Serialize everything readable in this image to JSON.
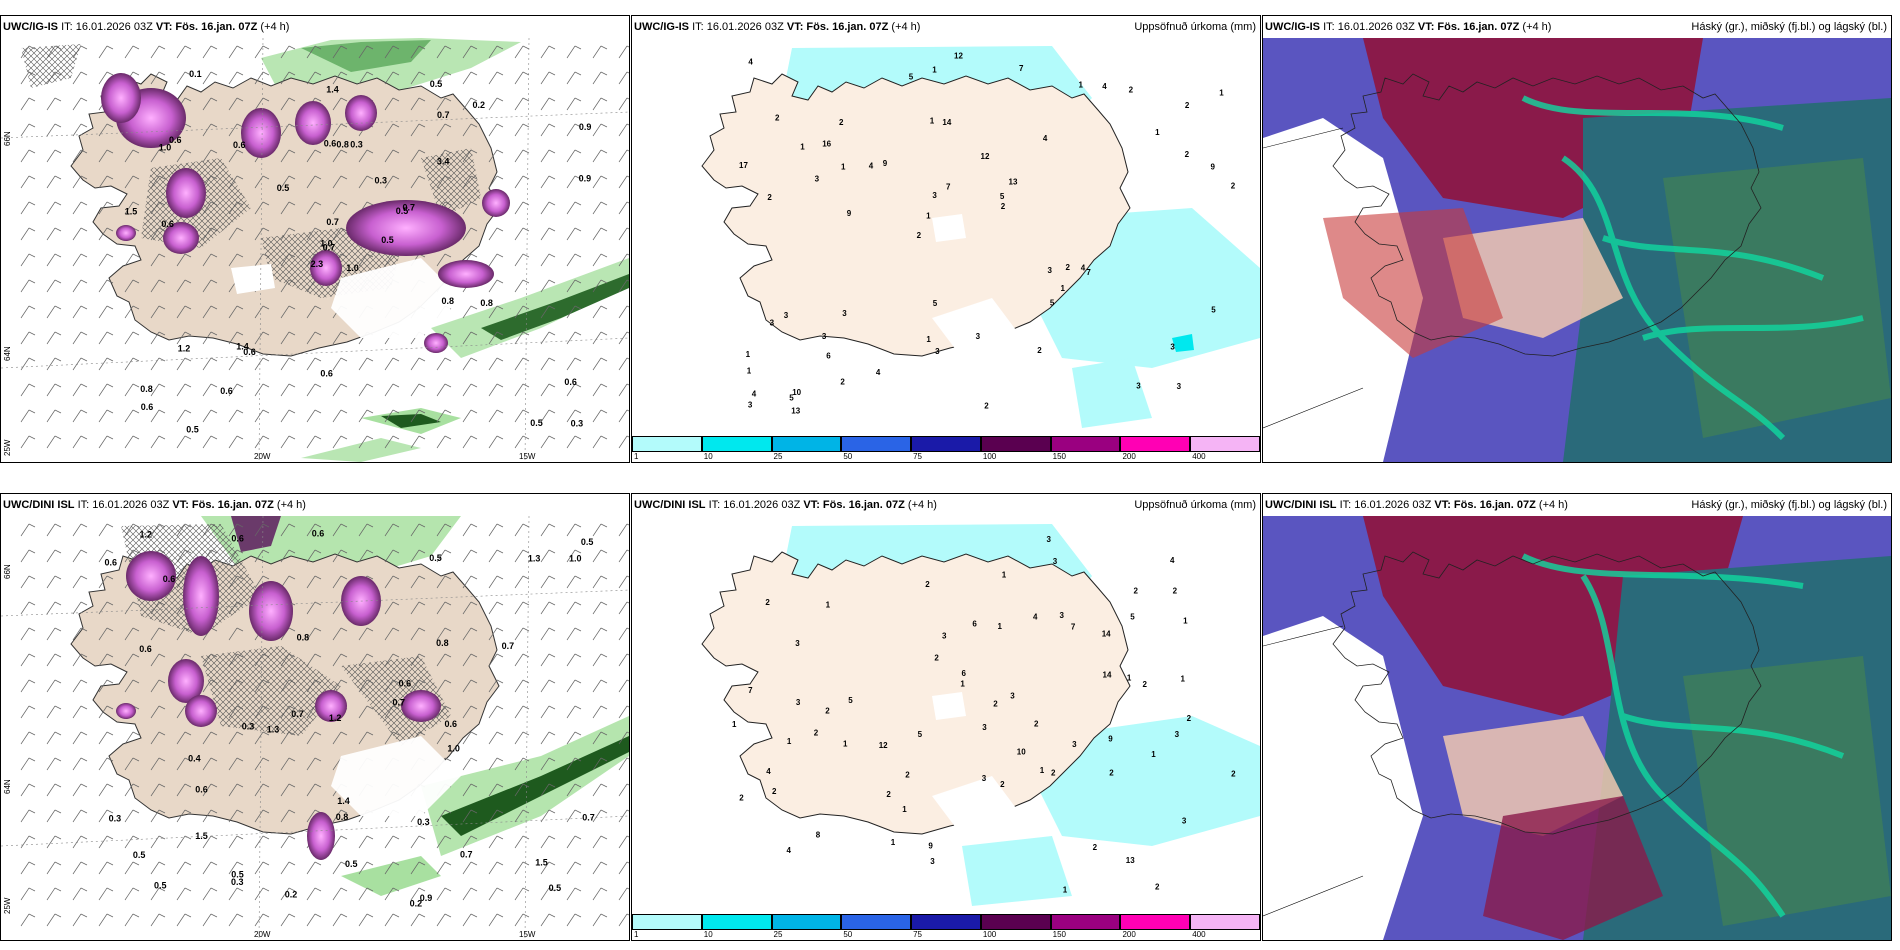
{
  "panels": [
    {
      "source": "UWC/IG-IS",
      "it": "IT: 16.01.2026 03Z",
      "vt": "VT: Fös. 16.jan. 07Z",
      "lead": "(+4 h)"
    },
    {
      "source": "UWC/IG-IS",
      "it": "IT: 16.01.2026 03Z",
      "vt": "VT: Fös. 16.jan. 07Z",
      "lead": "(+4 h)",
      "right": "Uppsöfnuð úrkoma (mm)"
    },
    {
      "source": "UWC/IG-IS",
      "it": "IT: 16.01.2026 03Z",
      "vt": "VT: Fös. 16.jan. 07Z",
      "lead": "(+4 h)",
      "right": "Háský (gr.), miðský (fj.bl.) og lágský (bl.)"
    },
    {
      "source": "UWC/DINI ISL",
      "it": "IT: 16.01.2026 03Z",
      "vt": "VT: Fös. 16.jan. 07Z",
      "lead": "(+4 h)"
    },
    {
      "source": "UWC/DINI ISL",
      "it": "IT: 16.01.2026 03Z",
      "vt": "VT: Fös. 16.jan. 07Z",
      "lead": "(+4 h)",
      "right": "Uppsöfnuð úrkoma (mm)"
    },
    {
      "source": "UWC/DINI ISL",
      "it": "IT: 16.01.2026 03Z",
      "vt": "VT: Fös. 16.jan. 07Z",
      "lead": "(+4 h)",
      "right": "Háský (gr.), miðský (fj.bl.) og lágský (bl.)"
    }
  ],
  "axes": {
    "lat_top": "66N",
    "lat_bottom": "64N",
    "lon_left": "25W",
    "lon_mid": "20W",
    "lon_right": "15W"
  },
  "legend": {
    "ticks": [
      "1",
      "10",
      "25",
      "50",
      "75",
      "100",
      "150",
      "200",
      "400"
    ],
    "colors": [
      "#b3fbfb",
      "#00e8ee",
      "#00b4e6",
      "#2a64e6",
      "#1a1aa8",
      "#5a0050",
      "#9a0080",
      "#ff00b4",
      "#f5b4f5"
    ]
  },
  "top_precip_labels": [
    "3",
    "2",
    "2",
    "2",
    "4",
    "10",
    "1",
    "12",
    "3",
    "9",
    "1",
    "6",
    "14",
    "13",
    "7",
    "2",
    "1",
    "2",
    "3",
    "2",
    "1",
    "1",
    "3",
    "2",
    "1",
    "3",
    "3",
    "3",
    "4",
    "2",
    "4",
    "3",
    "5",
    "2",
    "9",
    "5",
    "4",
    "3",
    "2",
    "3",
    "1",
    "1",
    "1",
    "2",
    "3",
    "13",
    "3",
    "3",
    "2",
    "12",
    "9",
    "17",
    "16",
    "4",
    "5",
    "7",
    "5",
    "7",
    "5",
    "5",
    "4",
    "2",
    "1",
    "1",
    "4",
    "1"
  ],
  "bot_precip_labels": [
    "2",
    "2",
    "1",
    "2",
    "3",
    "3",
    "8",
    "12",
    "14",
    "6",
    "7",
    "13",
    "1",
    "2",
    "2",
    "2",
    "9",
    "2",
    "7",
    "4",
    "4",
    "1",
    "1",
    "2",
    "2",
    "3",
    "1",
    "3",
    "1",
    "2",
    "2",
    "1",
    "2",
    "3",
    "3",
    "1",
    "3",
    "2",
    "2",
    "1",
    "2",
    "2",
    "1",
    "3",
    "5",
    "2",
    "1",
    "3",
    "4",
    "3",
    "3",
    "1",
    "2",
    "2",
    "2",
    "1",
    "3",
    "6",
    "10",
    "14",
    "9",
    "5",
    "1",
    "1",
    "2",
    "4",
    "5",
    "3"
  ],
  "top_snow_labels": [
    "1.0",
    "1.0",
    "0.7",
    "0.8",
    "0.5",
    "0.6",
    "0.5",
    "0.3",
    "0.7",
    "0.5",
    "0.1",
    "0.3",
    "0.6",
    "0.9",
    "2.3",
    "3.4",
    "0.5",
    "0.6",
    "0.3",
    "1.2",
    "0.5",
    "0.6",
    "0.6",
    "0.8",
    "0.7",
    "0.8",
    "0.6",
    "1.4",
    "1.5",
    "0.8",
    "0.9",
    "1.0",
    "0.6",
    "0.7",
    "0.6",
    "0.2",
    "1.4",
    "0.5",
    "0.6"
  ],
  "bot_snow_labels": [
    "0.2",
    "0.2",
    "0.5",
    "0.7",
    "0.6",
    "0.6",
    "0.3",
    "0.5",
    "0.6",
    "0.8",
    "1.3",
    "0.5",
    "0.7",
    "0.8",
    "0.5",
    "0.7",
    "0.6",
    "0.3",
    "1.3",
    "0.6",
    "0.3",
    "0.5",
    "0.6",
    "0.5",
    "0.7",
    "0.4",
    "0.3",
    "0.6",
    "1.2",
    "1.0",
    "1.2",
    "0.9",
    "1.4",
    "1.0",
    "1.5",
    "0.6",
    "0.7",
    "0.5",
    "0.8",
    "1.5"
  ]
}
